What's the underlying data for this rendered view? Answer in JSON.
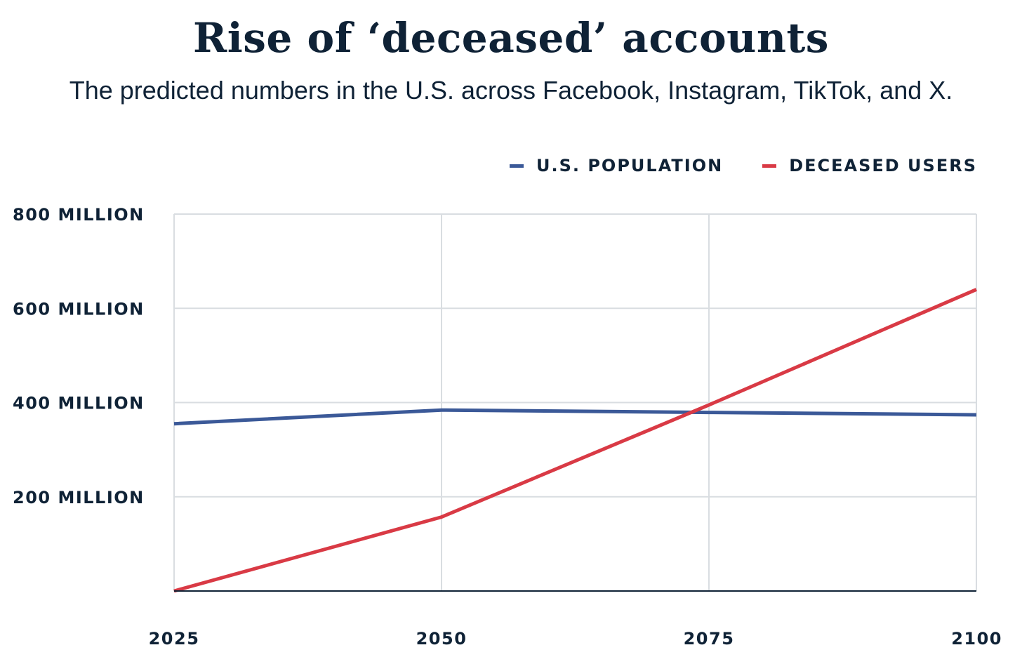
{
  "title": "Rise of ‘deceased’ accounts",
  "subtitle": "The predicted numbers in the U.S. across Facebook, Instagram, TikTok, and X.",
  "colors": {
    "population": "#3b5998",
    "deceased": "#d93a45",
    "grid": "#d9dde1",
    "axis": "#0f2236",
    "text": "#0f2236"
  },
  "chart_data": {
    "type": "line",
    "title": "Rise of ‘deceased’ accounts",
    "subtitle": "The predicted numbers in the U.S. across Facebook, Instagram, TikTok, and X.",
    "x": [
      2025,
      2050,
      2075,
      2100
    ],
    "x_tick_labels": [
      "2025",
      "2050",
      "2075",
      "2100"
    ],
    "y_ticks": [
      200,
      400,
      600,
      800
    ],
    "y_tick_labels": [
      "200 MILLION",
      "400 MILLION",
      "600 MILLION",
      "800 MILLION"
    ],
    "ylim": [
      0,
      800
    ],
    "xlim": [
      2025,
      2100
    ],
    "grid": true,
    "legend_position": "top-right",
    "series": [
      {
        "name": "U.S. POPULATION",
        "color_key": "population",
        "values": [
          355,
          384,
          379,
          374
        ]
      },
      {
        "name": "DECEASED USERS",
        "color_key": "deceased",
        "values": [
          0,
          157,
          395,
          640
        ]
      }
    ]
  }
}
